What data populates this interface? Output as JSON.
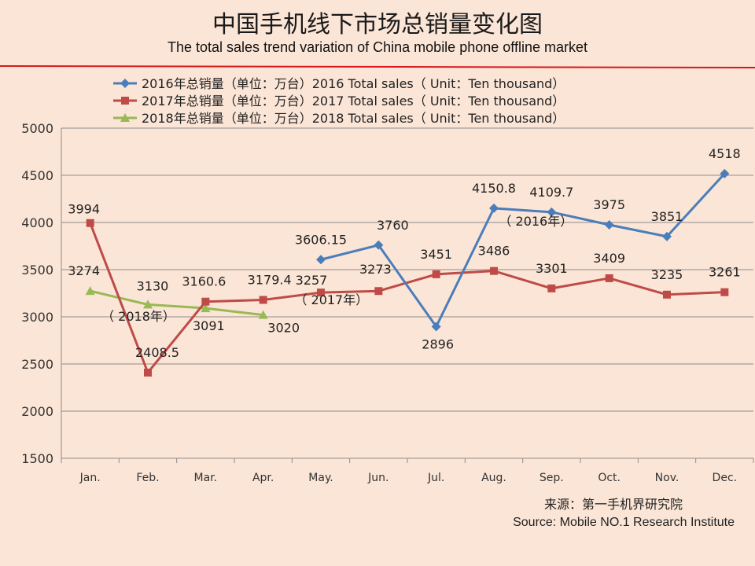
{
  "header": {
    "title_cn": "中国手机线下市场总销量变化图",
    "title_en": "The total sales trend variation of China mobile phone offline market"
  },
  "source": {
    "cn": "来源：第一手机界研究院",
    "en": "Source: Mobile NO.1 Research Institute"
  },
  "chart_data": {
    "type": "line",
    "title": "中国手机线下市场总销量变化图",
    "subtitle": "The total sales trend variation of China mobile phone offline market",
    "categories": [
      "Jan.",
      "Feb.",
      "Mar.",
      "Apr.",
      "May.",
      "Jun.",
      "Jul.",
      "Aug.",
      "Sep.",
      "Oct.",
      "Nov.",
      "Dec."
    ],
    "ylim": [
      1500,
      5000
    ],
    "yticks": [
      1500,
      2000,
      2500,
      3000,
      3500,
      4000,
      4500,
      5000
    ],
    "grid": true,
    "legend_position": "top",
    "series": [
      {
        "name": "2016年总销量（单位：万台）2016 Total sales（ Unit：Ten thousand）",
        "short_label": "（ 2016年）",
        "color": "#4a7ebb",
        "marker": "diamond",
        "values": [
          null,
          null,
          null,
          null,
          3606.15,
          3760,
          2896,
          4150.8,
          4109.7,
          3975,
          3851,
          4518
        ],
        "labels": [
          "",
          "",
          "",
          "",
          "3606.15",
          "3760",
          "2896",
          "4150.8",
          "4109.7",
          "3975",
          "3851",
          "4518"
        ]
      },
      {
        "name": "2017年总销量（单位：万台）2017 Total sales（ Unit：Ten thousand）",
        "short_label": "（ 2017年）",
        "color": "#be4b48",
        "marker": "square",
        "values": [
          3994,
          2408.5,
          3160.6,
          3179.4,
          3257,
          3273,
          3451,
          3486,
          3301,
          3409,
          3235,
          3261
        ],
        "labels": [
          "3994",
          "2408.5",
          "3160.6",
          "3179.4",
          "3257",
          "3273",
          "3451",
          "3486",
          "3301",
          "3409",
          "3235",
          "3261"
        ]
      },
      {
        "name": "2018年总销量（单位：万台）2018 Total sales（ Unit：Ten thousand）",
        "short_label": "（ 2018年）",
        "color": "#98b954",
        "marker": "triangle",
        "values": [
          3274,
          3130,
          3091,
          3020,
          null,
          null,
          null,
          null,
          null,
          null,
          null,
          null
        ],
        "labels": [
          "3274",
          "3130",
          "3091",
          "3020",
          "",
          "",
          "",
          "",
          "",
          "",
          "",
          ""
        ]
      }
    ]
  }
}
